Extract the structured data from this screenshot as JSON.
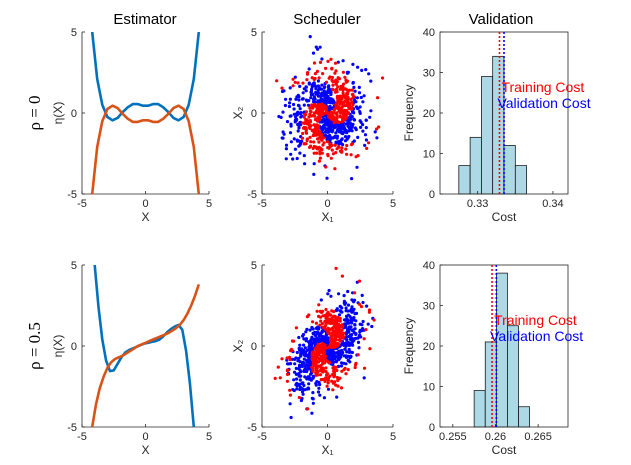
{
  "column_titles": [
    "Estimator",
    "Scheduler",
    "Validation"
  ],
  "row_labels": [
    "ρ = 0",
    "ρ = 0.5"
  ],
  "colors": {
    "curve_blue": "#0072BD",
    "curve_orange": "#D95319",
    "scatter_blue": "#0000FF",
    "scatter_red": "#FF0000",
    "hist_fill": "#ADD8E6",
    "training_cost": "#FF0000",
    "validation_cost": "#0000FF"
  },
  "chart_data": [
    {
      "id": "estimator-rho0",
      "type": "line",
      "title": "Estimator",
      "xlabel": "X",
      "ylabel": "η(X)",
      "xlim": [
        -5,
        5
      ],
      "ylim": [
        -5,
        5
      ],
      "xticks": [
        -5,
        0,
        5
      ],
      "yticks": [
        -5,
        0,
        5
      ],
      "series": [
        {
          "color": "blue",
          "x": [
            -4.2,
            -3.8,
            -3.4,
            -3.0,
            -2.6,
            -2.2,
            -1.8,
            -1.4,
            -1.0,
            -0.6,
            -0.2,
            0.2,
            0.6,
            1.0,
            1.4,
            1.8,
            2.2,
            2.6,
            3.0,
            3.4,
            3.8,
            4.2
          ],
          "y": [
            5.0,
            2.1,
            0.5,
            -0.25,
            -0.45,
            -0.3,
            0.05,
            0.35,
            0.55,
            0.55,
            0.45,
            0.45,
            0.55,
            0.55,
            0.35,
            0.05,
            -0.3,
            -0.45,
            -0.25,
            0.5,
            2.1,
            5.0
          ]
        },
        {
          "color": "orange",
          "x": [
            -4.2,
            -3.8,
            -3.4,
            -3.0,
            -2.6,
            -2.2,
            -1.8,
            -1.4,
            -1.0,
            -0.6,
            -0.2,
            0.2,
            0.6,
            1.0,
            1.4,
            1.8,
            2.2,
            2.6,
            3.0,
            3.4,
            3.8,
            4.2
          ],
          "y": [
            -5.0,
            -2.1,
            -0.5,
            0.25,
            0.45,
            0.3,
            -0.05,
            -0.35,
            -0.55,
            -0.55,
            -0.45,
            -0.45,
            -0.55,
            -0.55,
            -0.35,
            -0.05,
            0.3,
            0.45,
            0.25,
            -0.5,
            -2.1,
            -5.0
          ]
        }
      ]
    },
    {
      "id": "scheduler-rho0",
      "type": "scatter",
      "title": "Scheduler",
      "xlabel": "X₁",
      "ylabel": "X₂",
      "xlim": [
        -5,
        5
      ],
      "ylim": [
        -5,
        5
      ],
      "xticks": [
        -5,
        0,
        5
      ],
      "yticks": [
        -5,
        0,
        5
      ],
      "correlation": 0,
      "series": [
        {
          "color": "blue",
          "region": "two swirl lobes (upper-right and lower-left) plus outer halo"
        },
        {
          "color": "red",
          "region": "two swirl lobes (upper-left and lower-right)"
        }
      ]
    },
    {
      "id": "validation-rho0",
      "type": "bar",
      "subtype": "histogram",
      "xlabel": "Cost",
      "ylabel": "Frequency",
      "xlim": [
        0.325,
        0.342
      ],
      "ylim": [
        0,
        40
      ],
      "xticks": [
        0.33,
        0.335,
        0.34
      ],
      "xtick_labels": [
        "0.33",
        "",
        "0.34"
      ],
      "yticks": [
        0,
        10,
        20,
        30,
        40
      ],
      "bin_edges": [
        0.3275,
        0.329,
        0.3305,
        0.332,
        0.3335,
        0.335,
        0.3365
      ],
      "counts": [
        7,
        14,
        29,
        34,
        12,
        7
      ],
      "training_cost": 0.3329,
      "validation_cost": 0.3335,
      "legend": [
        "Training Cost",
        "Validation Cost"
      ]
    },
    {
      "id": "estimator-rho05",
      "type": "line",
      "title": "",
      "xlabel": "X",
      "ylabel": "η(X)",
      "xlim": [
        -5,
        5
      ],
      "ylim": [
        -5,
        5
      ],
      "xticks": [
        -5,
        0,
        5
      ],
      "yticks": [
        -5,
        0,
        5
      ],
      "series": [
        {
          "color": "blue",
          "x": [
            -4.0,
            -3.7,
            -3.4,
            -3.1,
            -2.8,
            -2.5,
            -2.2,
            -1.9,
            -1.6,
            -1.3,
            -1.0,
            -0.7,
            -0.4,
            -0.1,
            0.2,
            0.5,
            0.8,
            1.1,
            1.4,
            1.7,
            2.0,
            2.3,
            2.6,
            2.9,
            3.2,
            3.5,
            3.8
          ],
          "y": [
            5.0,
            2.4,
            0.4,
            -0.9,
            -1.55,
            -1.5,
            -1.1,
            -0.7,
            -0.4,
            -0.25,
            -0.15,
            -0.05,
            0.05,
            0.15,
            0.2,
            0.25,
            0.3,
            0.4,
            0.6,
            0.85,
            1.05,
            1.2,
            1.3,
            1.0,
            -0.3,
            -2.3,
            -5.0
          ]
        },
        {
          "color": "orange",
          "x": [
            -4.2,
            -3.9,
            -3.6,
            -3.3,
            -3.0,
            -2.7,
            -2.4,
            -2.1,
            -1.8,
            -1.5,
            -1.2,
            -0.9,
            -0.6,
            -0.3,
            0.0,
            0.3,
            0.6,
            0.9,
            1.2,
            1.5,
            1.8,
            2.1,
            2.4,
            2.7,
            3.0,
            3.3,
            3.6,
            3.9,
            4.2
          ],
          "y": [
            -5.0,
            -3.6,
            -2.6,
            -1.9,
            -1.35,
            -1.0,
            -0.8,
            -0.7,
            -0.6,
            -0.45,
            -0.3,
            -0.15,
            0.0,
            0.1,
            0.2,
            0.3,
            0.4,
            0.5,
            0.6,
            0.7,
            0.8,
            0.95,
            1.1,
            1.3,
            1.6,
            2.0,
            2.5,
            3.1,
            3.8
          ]
        }
      ]
    },
    {
      "id": "scheduler-rho05",
      "type": "scatter",
      "title": "",
      "xlabel": "X₁",
      "ylabel": "X₂",
      "xlim": [
        -5,
        5
      ],
      "ylim": [
        -5,
        5
      ],
      "xticks": [
        -5,
        0,
        5
      ],
      "yticks": [
        -5,
        0,
        5
      ],
      "correlation": 0.5,
      "series": [
        {
          "color": "blue",
          "region": "two swirl lobes along the diagonal plus outer halo"
        },
        {
          "color": "red",
          "region": "two swirl lobes along the diagonal"
        }
      ]
    },
    {
      "id": "validation-rho05",
      "type": "bar",
      "subtype": "histogram",
      "xlabel": "Cost",
      "ylabel": "Frequency",
      "xlim": [
        0.2535,
        0.2685
      ],
      "ylim": [
        0,
        40
      ],
      "xticks": [
        0.255,
        0.26,
        0.265
      ],
      "xtick_labels": [
        "0.255",
        "0.26",
        "0.265"
      ],
      "yticks": [
        0,
        10,
        20,
        30,
        40
      ],
      "bin_edges": [
        0.2575,
        0.2588,
        0.2601,
        0.2614,
        0.2627,
        0.264
      ],
      "counts": [
        9,
        21,
        38,
        25,
        5
      ],
      "training_cost": 0.2596,
      "validation_cost": 0.2601,
      "legend": [
        "Training Cost",
        "Validation Cost"
      ]
    }
  ]
}
